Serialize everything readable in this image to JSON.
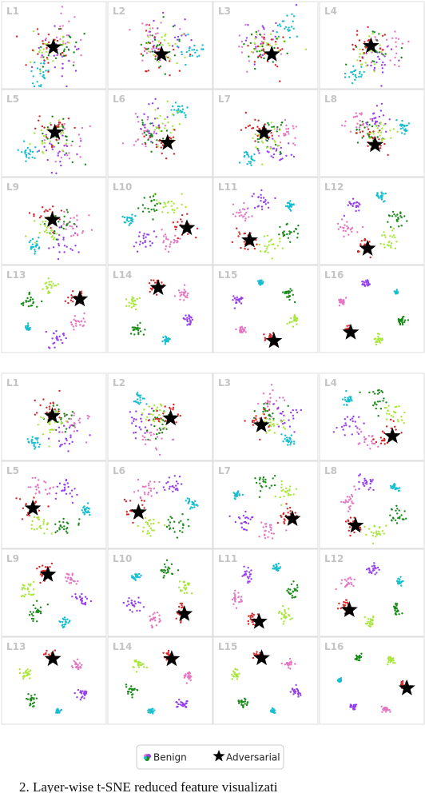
{
  "top_grid": {
    "panel_labels": [
      "L1",
      "L2",
      "L3",
      "L4",
      "L5",
      "L6",
      "L7",
      "L8",
      "L9",
      "L10",
      "L11",
      "L12",
      "L13",
      "L14",
      "L15",
      "L16"
    ]
  },
  "bottom_grid": {
    "panel_labels": [
      "L1",
      "L2",
      "L3",
      "L4",
      "L5",
      "L6",
      "L7",
      "L8",
      "L9",
      "L10",
      "L11",
      "L12",
      "L13",
      "L14",
      "L15",
      "L16"
    ]
  },
  "legend": {
    "items": [
      "Benign",
      "Adversarial"
    ]
  },
  "caption": "2.   Layer-wise  t-SNE  reduced  feature  visualizati"
}
